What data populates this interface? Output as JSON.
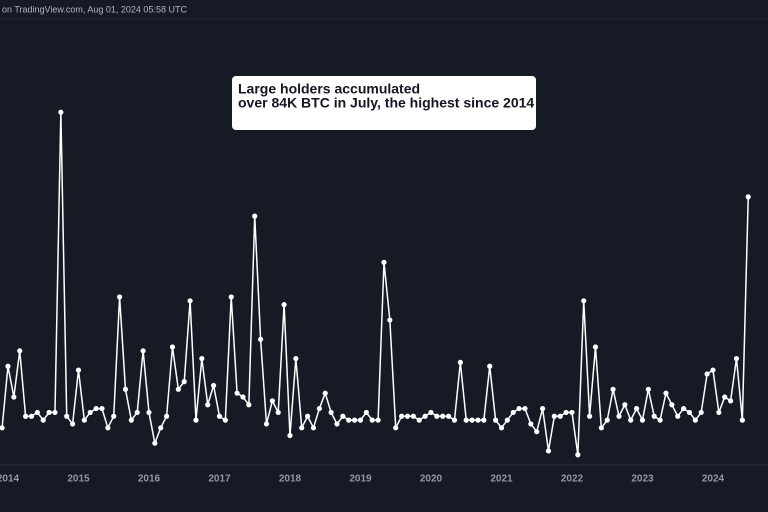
{
  "source": "on TradingView.com, Aug 01, 2024 05:58 UTC",
  "chart_data": {
    "type": "line",
    "annotation": [
      "Large holders accumulated",
      "over 84K BTC in July, the highest since 2014"
    ],
    "categories": [
      null,
      "2014",
      null,
      null,
      null,
      null,
      null,
      null,
      null,
      null,
      null,
      null,
      null,
      "2015",
      null,
      null,
      null,
      null,
      null,
      null,
      null,
      null,
      null,
      null,
      null,
      "2016",
      null,
      null,
      null,
      null,
      null,
      null,
      null,
      null,
      null,
      null,
      null,
      "2017",
      null,
      null,
      null,
      null,
      null,
      null,
      null,
      null,
      null,
      null,
      null,
      "2018",
      null,
      null,
      null,
      null,
      null,
      null,
      null,
      null,
      null,
      null,
      null,
      "2019",
      null,
      null,
      null,
      null,
      null,
      null,
      null,
      null,
      null,
      null,
      null,
      "2020",
      null,
      null,
      null,
      null,
      null,
      null,
      null,
      null,
      null,
      null,
      null,
      "2021",
      null,
      null,
      null,
      null,
      null,
      null,
      null,
      null,
      null,
      null,
      null,
      "2022",
      null,
      null,
      null,
      null,
      null,
      null,
      null,
      null,
      null,
      null,
      null,
      "2023",
      null,
      null,
      null,
      null,
      null,
      null,
      null,
      null,
      null,
      null,
      null,
      "2024",
      null,
      null,
      null,
      null,
      null,
      null
    ],
    "values": [
      24,
      40,
      32,
      44,
      27,
      27,
      28,
      26,
      28,
      28,
      106,
      27,
      25,
      39,
      26,
      28,
      29,
      29,
      24,
      27,
      58,
      34,
      26,
      28,
      44,
      28,
      20,
      24,
      27,
      45,
      34,
      36,
      57,
      26,
      42,
      30,
      35,
      27,
      26,
      58,
      33,
      32,
      30,
      79,
      47,
      25,
      31,
      28,
      56,
      22,
      42,
      24,
      27,
      24,
      29,
      33,
      28,
      25,
      27,
      26,
      26,
      26,
      28,
      26,
      26,
      67,
      52,
      24,
      27,
      27,
      27,
      26,
      27,
      28,
      27,
      27,
      27,
      26,
      41,
      26,
      26,
      26,
      26,
      40,
      26,
      24,
      26,
      28,
      29,
      29,
      25,
      23,
      29,
      18,
      27,
      27,
      28,
      28,
      17,
      57,
      27,
      45,
      24,
      26,
      34,
      27,
      30,
      26,
      29,
      26,
      34,
      27,
      26,
      33,
      30,
      27,
      29,
      28,
      26,
      28,
      38,
      39,
      28,
      32,
      31,
      42,
      26,
      84
    ],
    "color": "#ffffff",
    "ylim": [
      14.6,
      131
    ]
  }
}
